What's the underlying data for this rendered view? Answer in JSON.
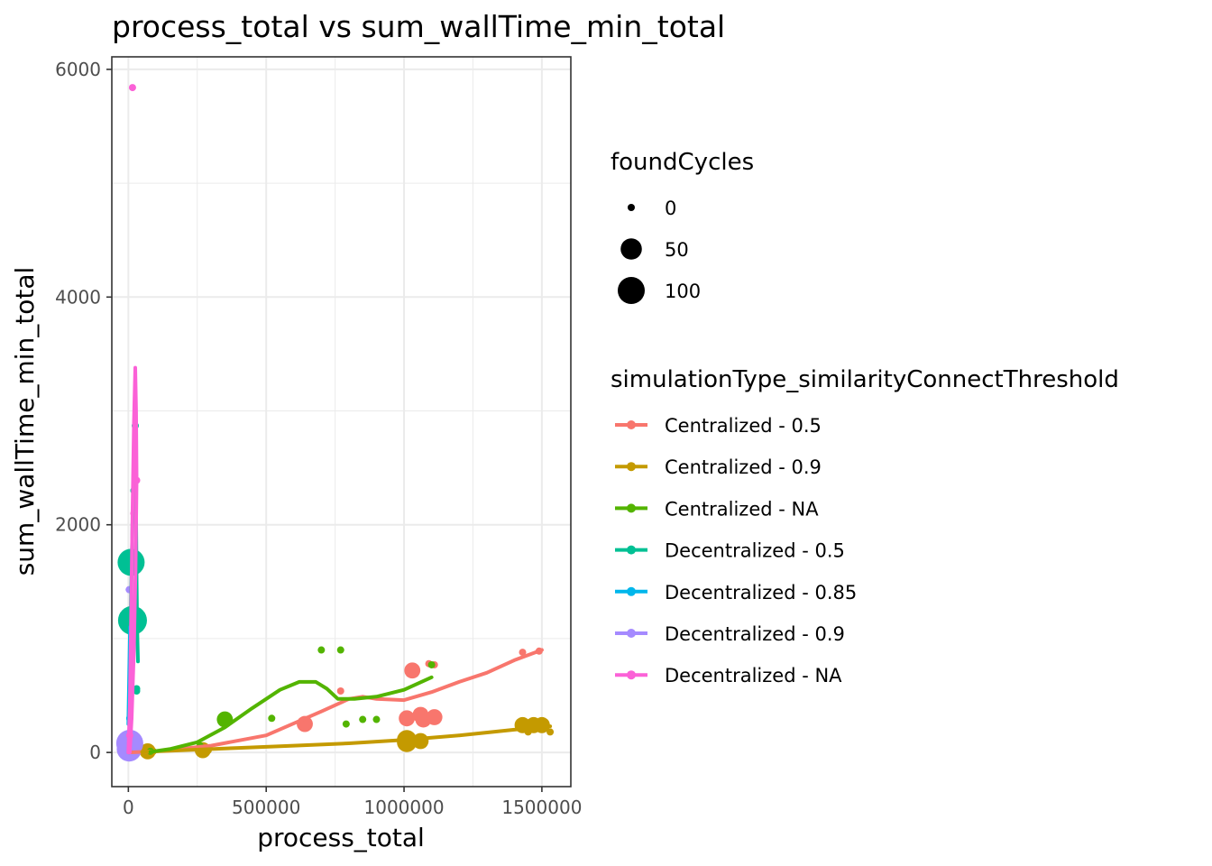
{
  "chart_data": {
    "type": "scatter",
    "title": "process_total  vs  sum_wallTime_min_total",
    "xlabel": "process_total",
    "ylabel": "sum_wallTime_min_total",
    "xlim": [
      -60000,
      1605000
    ],
    "ylim": [
      -300,
      6110
    ],
    "x_ticks": [
      0,
      500000,
      1000000,
      1500000
    ],
    "x_tick_labels": [
      "0",
      "500000",
      "1000000",
      "1500000"
    ],
    "y_ticks": [
      0,
      2000,
      4000,
      6000
    ],
    "y_tick_labels": [
      "0",
      "2000",
      "4000",
      "6000"
    ],
    "grid": true,
    "legend_position": "right",
    "size_legend": {
      "title": "foundCycles",
      "entries": [
        {
          "label": "0",
          "value": 0
        },
        {
          "label": "50",
          "value": 50
        },
        {
          "label": "100",
          "value": 100
        }
      ]
    },
    "color_legend_title": "simulationType_similarityConnectThreshold",
    "series": [
      {
        "name": "Centralized - 0.5",
        "color": "#F8766D",
        "points": [
          {
            "x": 640000,
            "y": 250,
            "size": 20
          },
          {
            "x": 770000,
            "y": 540,
            "size": 0
          },
          {
            "x": 1010000,
            "y": 300,
            "size": 20
          },
          {
            "x": 1030000,
            "y": 720,
            "size": 20
          },
          {
            "x": 1060000,
            "y": 330,
            "size": 20
          },
          {
            "x": 1070000,
            "y": 290,
            "size": 20
          },
          {
            "x": 1090000,
            "y": 780,
            "size": 0
          },
          {
            "x": 1110000,
            "y": 310,
            "size": 20
          },
          {
            "x": 1110000,
            "y": 770,
            "size": 0
          },
          {
            "x": 1430000,
            "y": 880,
            "size": 0
          },
          {
            "x": 1490000,
            "y": 890,
            "size": 0
          }
        ],
        "smooth": [
          [
            0,
            0
          ],
          [
            100000,
            10000
          ],
          [
            300000,
            60000
          ],
          [
            500000,
            150000
          ],
          [
            700000,
            360000
          ],
          [
            800000,
            470000
          ],
          [
            850000,
            490000
          ],
          [
            900000,
            470000
          ],
          [
            1000000,
            460000
          ],
          [
            1100000,
            530000
          ],
          [
            1200000,
            620000
          ],
          [
            1300000,
            700000
          ],
          [
            1400000,
            810000
          ],
          [
            1500000,
            900000
          ]
        ],
        "smooth_units": "y in thousandths of the axis units"
      },
      {
        "name": "Centralized - 0.9",
        "color": "#C49A00",
        "points": [
          {
            "x": 70000,
            "y": 10,
            "size": 20
          },
          {
            "x": 90000,
            "y": 10,
            "size": 0
          },
          {
            "x": 270000,
            "y": 20,
            "size": 20
          },
          {
            "x": 290000,
            "y": 20,
            "size": 0
          },
          {
            "x": 1010000,
            "y": 110,
            "size": 40
          },
          {
            "x": 1010000,
            "y": 90,
            "size": 40
          },
          {
            "x": 1060000,
            "y": 100,
            "size": 20
          },
          {
            "x": 1430000,
            "y": 240,
            "size": 20
          },
          {
            "x": 1450000,
            "y": 180,
            "size": 0
          },
          {
            "x": 1470000,
            "y": 240,
            "size": 20
          },
          {
            "x": 1500000,
            "y": 240,
            "size": 20
          },
          {
            "x": 1530000,
            "y": 180,
            "size": 0
          }
        ],
        "smooth": [
          [
            50000,
            5
          ],
          [
            200000,
            20
          ],
          [
            400000,
            40
          ],
          [
            600000,
            60
          ],
          [
            800000,
            80
          ],
          [
            1000000,
            110
          ],
          [
            1200000,
            150
          ],
          [
            1400000,
            200
          ],
          [
            1530000,
            230
          ]
        ]
      },
      {
        "name": "Centralized - NA",
        "color": "#53B400",
        "points": [
          {
            "x": 80000,
            "y": 10,
            "size": 0
          },
          {
            "x": 260000,
            "y": 60,
            "size": 0
          },
          {
            "x": 350000,
            "y": 290,
            "size": 20
          },
          {
            "x": 520000,
            "y": 300,
            "size": 0
          },
          {
            "x": 700000,
            "y": 900,
            "size": 0
          },
          {
            "x": 770000,
            "y": 900,
            "size": 0
          },
          {
            "x": 790000,
            "y": 250,
            "size": 0
          },
          {
            "x": 850000,
            "y": 290,
            "size": 0
          },
          {
            "x": 900000,
            "y": 290,
            "size": 0
          },
          {
            "x": 1100000,
            "y": 770,
            "size": 0
          }
        ],
        "smooth": [
          [
            80000,
            5
          ],
          [
            150000,
            30
          ],
          [
            250000,
            90
          ],
          [
            350000,
            220
          ],
          [
            450000,
            390
          ],
          [
            550000,
            550
          ],
          [
            620000,
            620
          ],
          [
            680000,
            620
          ],
          [
            720000,
            560
          ],
          [
            760000,
            470
          ],
          [
            820000,
            470
          ],
          [
            900000,
            490
          ],
          [
            1000000,
            550
          ],
          [
            1100000,
            660
          ]
        ]
      },
      {
        "name": "Decentralized - 0.5",
        "color": "#00C094",
        "points": [
          {
            "x": 25000,
            "y": 2870,
            "size": 0
          },
          {
            "x": 20000,
            "y": 2300,
            "size": 0
          },
          {
            "x": 10000,
            "y": 1670,
            "size": 100
          },
          {
            "x": 15000,
            "y": 1160,
            "size": 120
          },
          {
            "x": 30000,
            "y": 560,
            "size": 0
          },
          {
            "x": 30000,
            "y": 540,
            "size": 0
          }
        ],
        "smooth": [
          [
            3000,
            0
          ],
          [
            5000,
            600
          ],
          [
            10000,
            1400
          ],
          [
            15000,
            2000
          ],
          [
            20000,
            2400
          ],
          [
            25000,
            2870
          ],
          [
            28000,
            2100
          ],
          [
            30000,
            1500
          ],
          [
            32000,
            1100
          ],
          [
            35000,
            800
          ]
        ]
      },
      {
        "name": "Decentralized - 0.85",
        "color": "#00B6EB",
        "points": [
          {
            "x": 5000,
            "y": 300,
            "size": 0
          }
        ],
        "smooth": [
          [
            0,
            250
          ],
          [
            3000,
            700
          ],
          [
            6000,
            1100
          ]
        ]
      },
      {
        "name": "Decentralized - 0.9",
        "color": "#A58AFF",
        "points": [
          {
            "x": 3000,
            "y": 1430,
            "size": 0
          },
          {
            "x": 5000,
            "y": 80,
            "size": 100
          },
          {
            "x": 3000,
            "y": 30,
            "size": 80
          }
        ],
        "smooth": [
          [
            0,
            30
          ],
          [
            2000,
            50
          ],
          [
            4000,
            90
          ]
        ]
      },
      {
        "name": "Decentralized - NA",
        "color": "#FB61D7",
        "points": [
          {
            "x": 15000,
            "y": 5840,
            "size": 0
          },
          {
            "x": 30000,
            "y": 2390,
            "size": 0
          },
          {
            "x": 20000,
            "y": 2100,
            "size": 0
          },
          {
            "x": 5000,
            "y": 150,
            "size": 0
          }
        ],
        "smooth": [
          [
            0,
            0
          ],
          [
            5000,
            400
          ],
          [
            10000,
            1200
          ],
          [
            15000,
            2100
          ],
          [
            20000,
            2900
          ],
          [
            25000,
            3380
          ],
          [
            28000,
            3000
          ],
          [
            30000,
            2400
          ],
          [
            26000,
            1600
          ],
          [
            20000,
            900
          ],
          [
            12000,
            300
          ],
          [
            5000,
            0
          ]
        ]
      }
    ]
  }
}
